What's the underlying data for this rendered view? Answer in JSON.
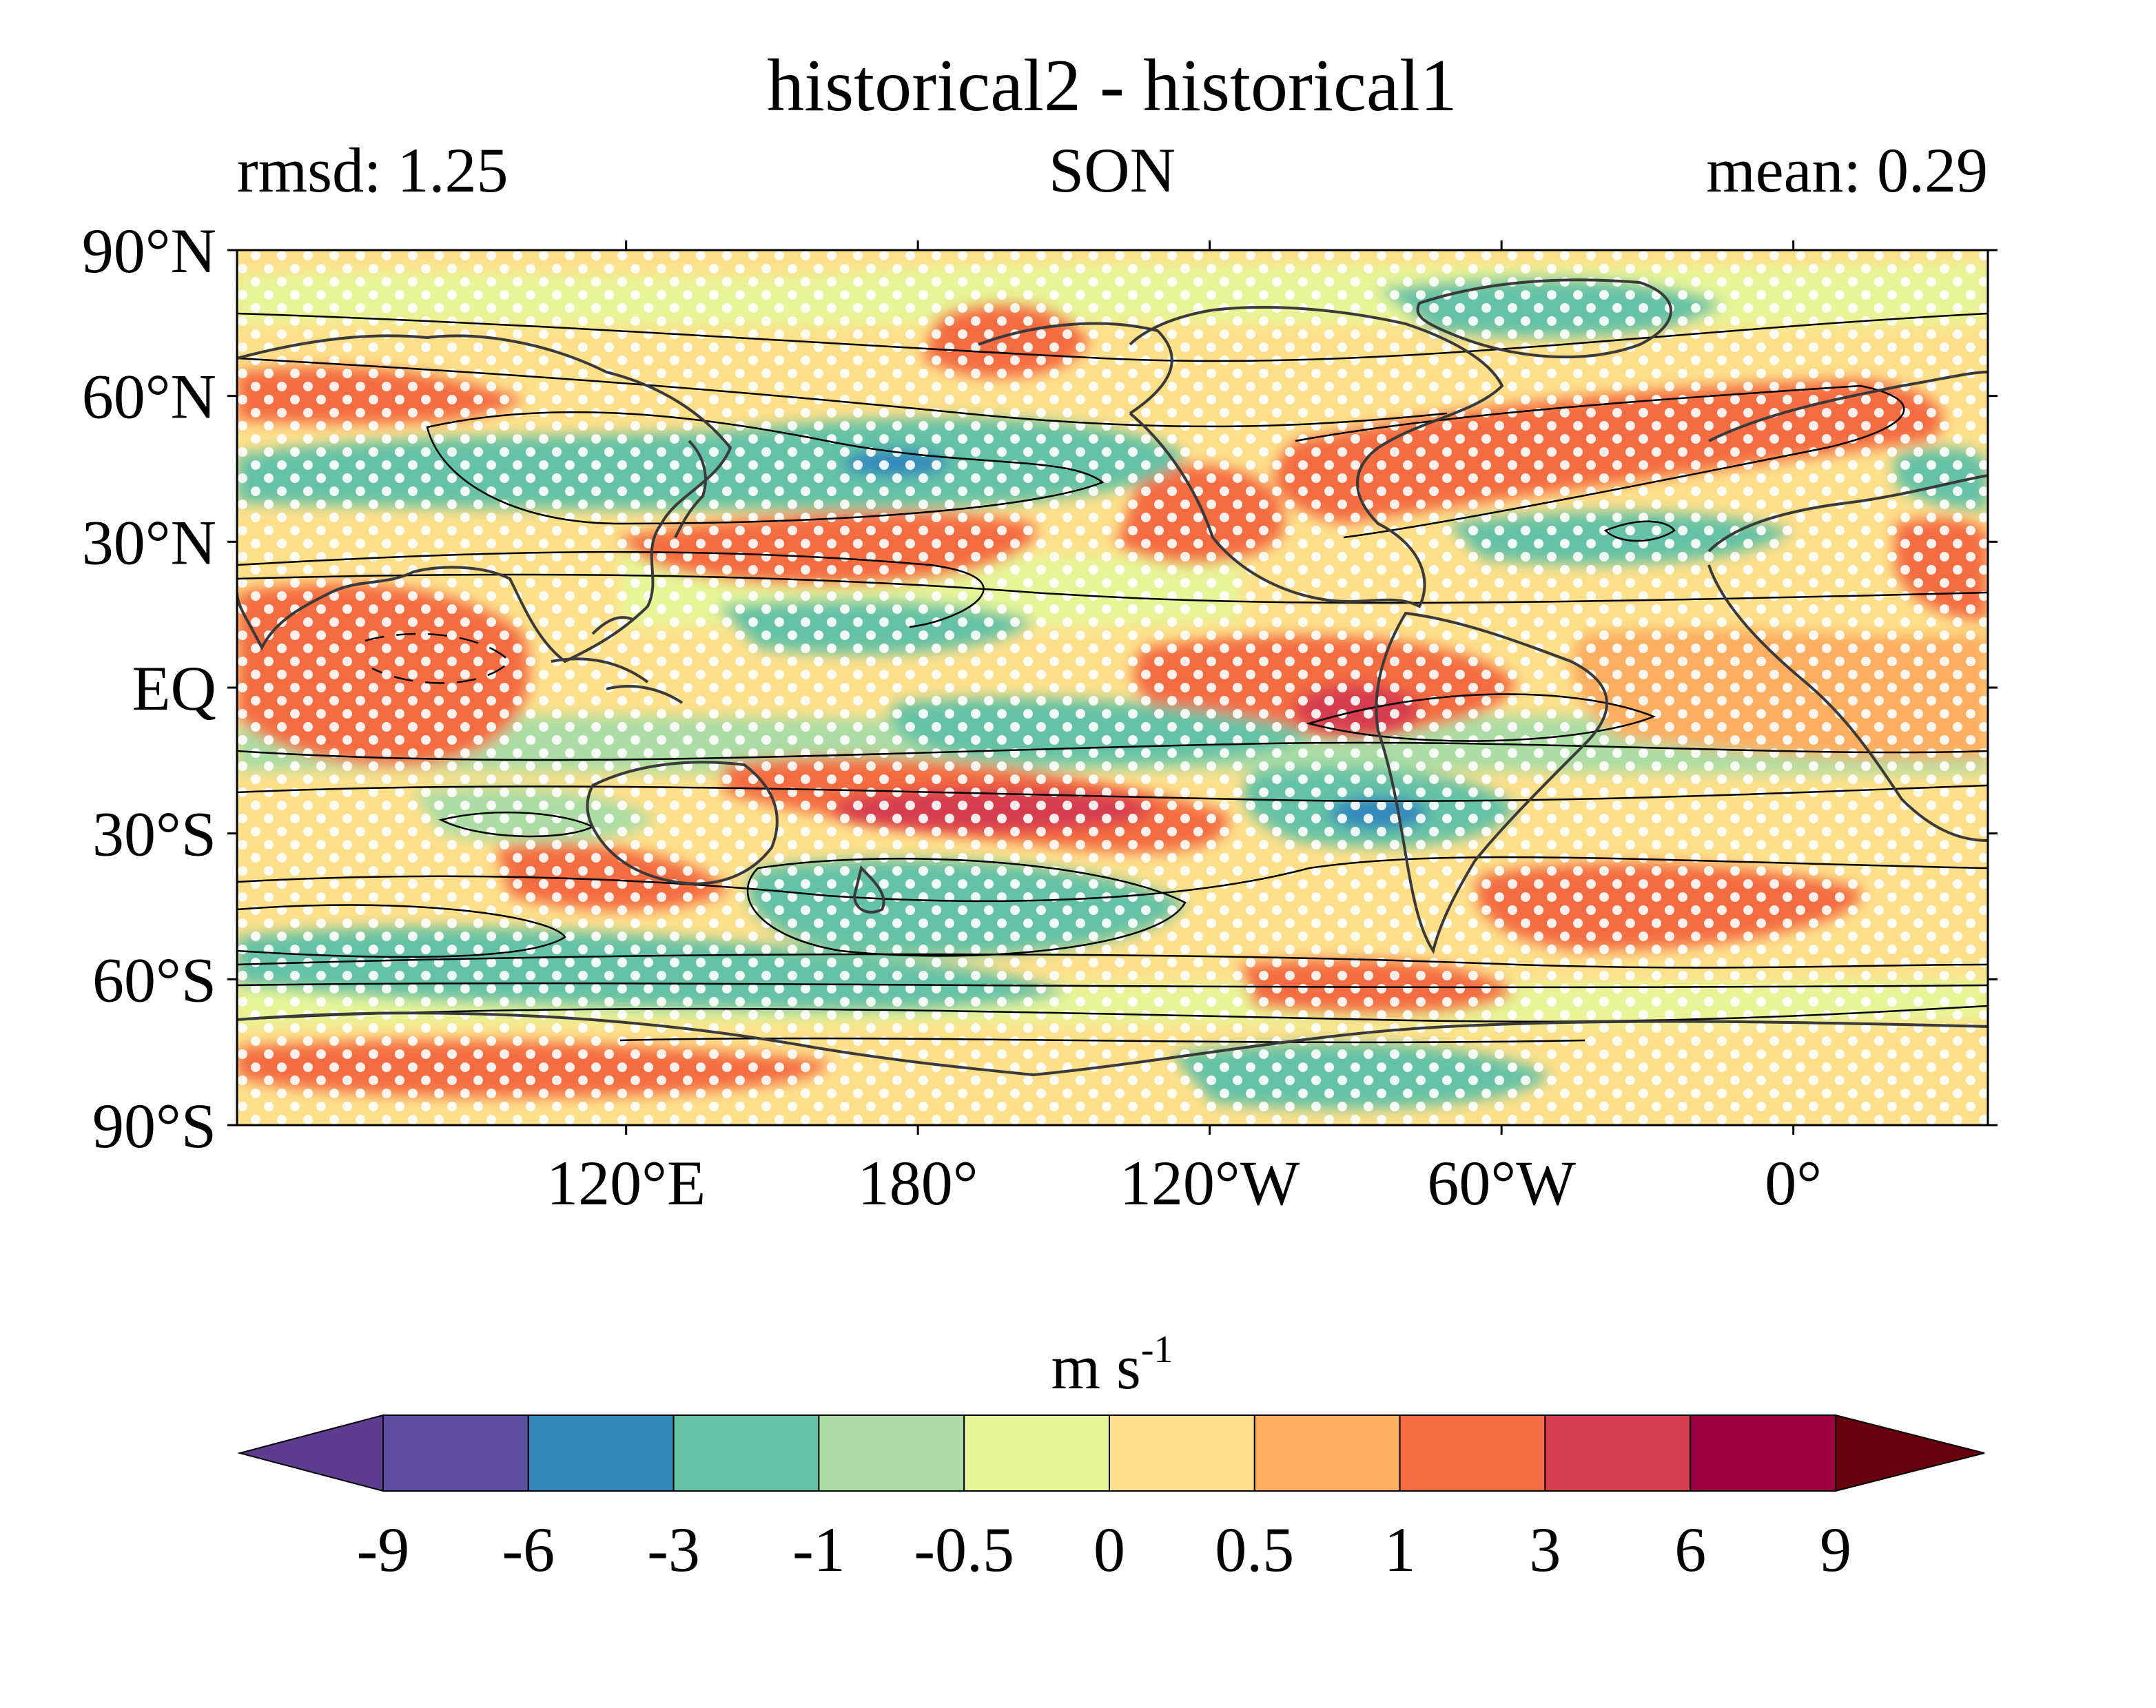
{
  "title": "historical2 - historical1",
  "subtitle_left": "rmsd: 1.25",
  "subtitle_center": "SON",
  "subtitle_right": "mean: 0.29",
  "lat_ticks": [
    {
      "label": "90°N",
      "value": 90
    },
    {
      "label": "60°N",
      "value": 60
    },
    {
      "label": "30°N",
      "value": 30
    },
    {
      "label": "EQ",
      "value": 0
    },
    {
      "label": "30°S",
      "value": -30
    },
    {
      "label": "60°S",
      "value": -60
    },
    {
      "label": "90°S",
      "value": -90
    }
  ],
  "lon_ticks": [
    {
      "label": "120°E",
      "value": 120
    },
    {
      "label": "180°",
      "value": 180
    },
    {
      "label": "120°W",
      "value": 240
    },
    {
      "label": "60°W",
      "value": 300
    },
    {
      "label": "0°",
      "value": 360
    }
  ],
  "map_extent": {
    "lon_min": 40,
    "lon_max": 400,
    "lat_min": -90,
    "lat_max": 90
  },
  "colorbar": {
    "units": "m s",
    "units_exponent": "-1",
    "labels": [
      "-9",
      "-6",
      "-3",
      "-1",
      "-0.5",
      "0",
      "0.5",
      "1",
      "3",
      "6",
      "9"
    ],
    "colors": [
      "#5e3c8f",
      "#5e4fa2",
      "#3288bd",
      "#66c2a5",
      "#abdda4",
      "#e6f598",
      "#fee08b",
      "#fdae61",
      "#f46d43",
      "#d53e4f",
      "#9e0142",
      "#67000d"
    ]
  },
  "chart_data": {
    "type": "heatmap",
    "title": "historical2 - historical1",
    "season": "SON",
    "rmsd": 1.25,
    "mean": 0.29,
    "units": "m s-1",
    "levels": [
      -9,
      -6,
      -3,
      -1,
      -0.5,
      0,
      0.5,
      1,
      3,
      6,
      9
    ],
    "anomaly_features": [
      {
        "lon": 180,
        "lat": 46,
        "value": -6
      },
      {
        "lon": 165,
        "lat": 45,
        "value": -3
      },
      {
        "lon": 120,
        "lat": 40,
        "value": -3
      },
      {
        "lon": 200,
        "lat": 10,
        "value": -3
      },
      {
        "lon": 300,
        "lat": 70,
        "value": -3
      },
      {
        "lon": 255,
        "lat": 68,
        "value": 3
      },
      {
        "lon": 320,
        "lat": 50,
        "value": 3
      },
      {
        "lon": 60,
        "lat": 0,
        "value": 3
      },
      {
        "lon": 270,
        "lat": 0,
        "value": 6
      },
      {
        "lon": 185,
        "lat": -25,
        "value": 6
      },
      {
        "lon": 280,
        "lat": -25,
        "value": -3
      },
      {
        "lon": 275,
        "lat": -28,
        "value": -6
      },
      {
        "lon": 185,
        "lat": -45,
        "value": -3
      },
      {
        "lon": 310,
        "lat": -45,
        "value": 3
      },
      {
        "lon": 100,
        "lat": -80,
        "value": 3
      },
      {
        "lon": 290,
        "lat": -85,
        "value": -3
      }
    ]
  }
}
